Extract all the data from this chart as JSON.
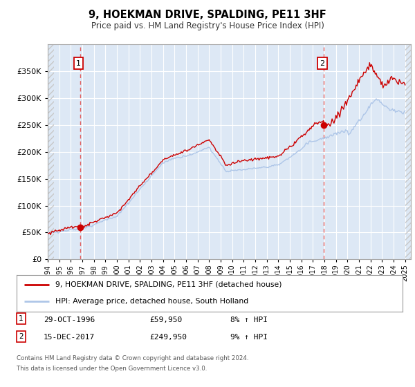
{
  "title": "9, HOEKMAN DRIVE, SPALDING, PE11 3HF",
  "subtitle": "Price paid vs. HM Land Registry's House Price Index (HPI)",
  "legend_line1": "9, HOEKMAN DRIVE, SPALDING, PE11 3HF (detached house)",
  "legend_line2": "HPI: Average price, detached house, South Holland",
  "footnote1": "Contains HM Land Registry data © Crown copyright and database right 2024.",
  "footnote2": "This data is licensed under the Open Government Licence v3.0.",
  "sale1_label": "1",
  "sale1_date": "29-OCT-1996",
  "sale1_price": "£59,950",
  "sale1_hpi": "8% ↑ HPI",
  "sale2_label": "2",
  "sale2_date": "15-DEC-2017",
  "sale2_price": "£249,950",
  "sale2_hpi": "9% ↑ HPI",
  "sale1_year": 1996.83,
  "sale1_value": 59950,
  "sale2_year": 2017.96,
  "sale2_value": 249950,
  "hpi_color": "#aec6e8",
  "price_color": "#cc0000",
  "ylim_max": 400000,
  "ylim_min": 0,
  "xmin": 1994.0,
  "xmax": 2025.5,
  "plot_bg": "#dde8f5",
  "hatch_color": "#c8c8c8",
  "grid_color": "#ffffff",
  "dashed_line_color": "#e06060"
}
